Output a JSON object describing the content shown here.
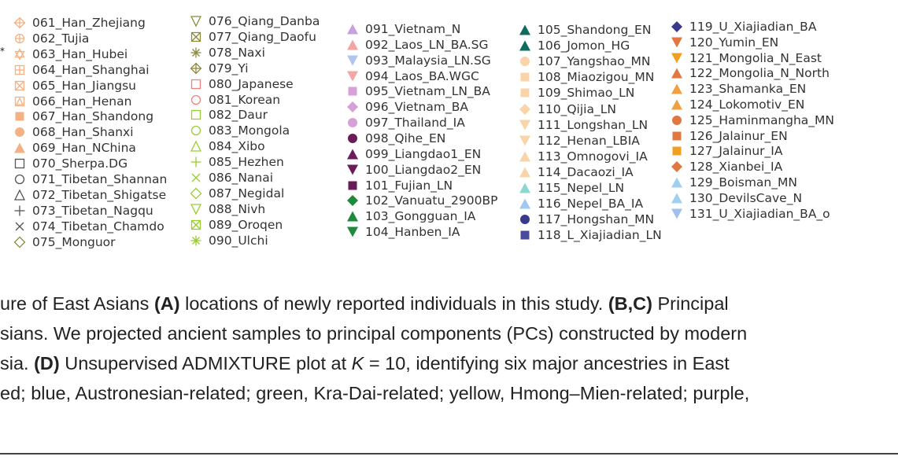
{
  "star_mark": "*",
  "legend_columns": [
    {
      "items": [
        {
          "label": "061_Han_Zhejiang",
          "marker": "diamond-plus-open",
          "color": "#f4b183"
        },
        {
          "label": "062_Tujia",
          "marker": "circle-plus-open",
          "color": "#f4b183"
        },
        {
          "label": "063_Han_Hubei",
          "marker": "star-open",
          "color": "#f4b183"
        },
        {
          "label": "064_Han_Shanghai",
          "marker": "square-plus-open",
          "color": "#f4b183"
        },
        {
          "label": "065_Han_Jiangsu",
          "marker": "square-x-open",
          "color": "#f4b183"
        },
        {
          "label": "066_Han_Henan",
          "marker": "square-triangle-open",
          "color": "#f4b183"
        },
        {
          "label": "067_Han_Shandong",
          "marker": "square-filled",
          "color": "#f4b183"
        },
        {
          "label": "068_Han_Shanxi",
          "marker": "circle-filled",
          "color": "#f4b183"
        },
        {
          "label": "069_Han_NChina",
          "marker": "triangle-up-filled",
          "color": "#f4b183"
        },
        {
          "label": "070_Sherpa.DG",
          "marker": "square-open",
          "color": "#555555"
        },
        {
          "label": "071_Tibetan_Shannan",
          "marker": "circle-open",
          "color": "#555555"
        },
        {
          "label": "072_Tibetan_Shigatse",
          "marker": "triangle-up-open",
          "color": "#555555"
        },
        {
          "label": "073_Tibetan_Nagqu",
          "marker": "plus",
          "color": "#555555"
        },
        {
          "label": "074_Tibetan_Chamdo",
          "marker": "cross",
          "color": "#555555"
        },
        {
          "label": "075_Monguor",
          "marker": "diamond-open",
          "color": "#8c8c3c"
        }
      ]
    },
    {
      "items": [
        {
          "label": "076_Qiang_Danba",
          "marker": "triangle-down-open",
          "color": "#8c8c3c"
        },
        {
          "label": "077_Qiang_Daofu",
          "marker": "square-x-open",
          "color": "#8c8c3c"
        },
        {
          "label": "078_Naxi",
          "marker": "asterisk",
          "color": "#8c8c3c"
        },
        {
          "label": "079_Yi",
          "marker": "diamond-plus-open",
          "color": "#8c8c3c"
        },
        {
          "label": "080_Japanese",
          "marker": "square-open",
          "color": "#f08080"
        },
        {
          "label": "081_Korean",
          "marker": "circle-open",
          "color": "#f08080"
        },
        {
          "label": "082_Daur",
          "marker": "square-open",
          "color": "#9acd32"
        },
        {
          "label": "083_Mongola",
          "marker": "circle-open",
          "color": "#9acd32"
        },
        {
          "label": "084_Xibo",
          "marker": "triangle-up-open",
          "color": "#9acd32"
        },
        {
          "label": "085_Hezhen",
          "marker": "plus",
          "color": "#9acd32"
        },
        {
          "label": "086_Nanai",
          "marker": "cross",
          "color": "#9acd32"
        },
        {
          "label": "087_Negidal",
          "marker": "diamond-open",
          "color": "#9acd32"
        },
        {
          "label": "088_Nivh",
          "marker": "triangle-down-open",
          "color": "#9acd32"
        },
        {
          "label": "089_Oroqen",
          "marker": "square-x-open",
          "color": "#9acd32"
        },
        {
          "label": "090_Ulchi",
          "marker": "asterisk",
          "color": "#9acd32"
        }
      ]
    },
    {
      "items": [
        {
          "label": "091_Vietnam_N",
          "marker": "triangle-up-filled",
          "color": "#c9a0dc"
        },
        {
          "label": "092_Laos_LN_BA.SG",
          "marker": "triangle-up-filled",
          "color": "#f4a6a6"
        },
        {
          "label": "093_Malaysia_LN.SG",
          "marker": "triangle-down-filled",
          "color": "#b0c4f0"
        },
        {
          "label": "094_Laos_BA.WGC",
          "marker": "triangle-down-filled",
          "color": "#f4a6a6"
        },
        {
          "label": "095_Vietnam_LN_BA",
          "marker": "square-filled",
          "color": "#d8a0d8"
        },
        {
          "label": "096_Vietnam_BA",
          "marker": "diamond-filled",
          "color": "#d8a0d8"
        },
        {
          "label": "097_Thailand_IA",
          "marker": "circle-filled",
          "color": "#d8a0d8"
        },
        {
          "label": "098_Qihe_EN",
          "marker": "circle-filled",
          "color": "#6a1b5a"
        },
        {
          "label": "099_Liangdao1_EN",
          "marker": "triangle-up-filled",
          "color": "#6a1b5a"
        },
        {
          "label": "100_Liangdao2_EN",
          "marker": "triangle-down-filled",
          "color": "#6a1b5a"
        },
        {
          "label": "101_Fujian_LN",
          "marker": "square-filled",
          "color": "#6a1b5a"
        },
        {
          "label": "102_Vanuatu_2900BP",
          "marker": "diamond-filled",
          "color": "#1e8a3c"
        },
        {
          "label": "103_Gongguan_IA",
          "marker": "triangle-up-filled",
          "color": "#1e8a3c"
        },
        {
          "label": "104_Hanben_IA",
          "marker": "triangle-down-filled",
          "color": "#1e8a3c"
        }
      ]
    },
    {
      "items": [
        {
          "label": "105_Shandong_EN",
          "marker": "triangle-up-filled",
          "color": "#0f6b5f"
        },
        {
          "label": "106_Jomon_HG",
          "marker": "triangle-up-filled",
          "color": "#0f6b5f"
        },
        {
          "label": "107_Yangshao_MN",
          "marker": "circle-filled",
          "color": "#f8d4a8"
        },
        {
          "label": "108_Miaozigou_MN",
          "marker": "square-filled",
          "color": "#f8d4a8"
        },
        {
          "label": "109_Shimao_LN",
          "marker": "square-filled",
          "color": "#f8d4a8"
        },
        {
          "label": "110_Qijia_LN",
          "marker": "diamond-filled",
          "color": "#f8d4a8"
        },
        {
          "label": "111_Longshan_LN",
          "marker": "triangle-down-filled",
          "color": "#f8d4a8"
        },
        {
          "label": "112_Henan_LBIA",
          "marker": "triangle-down-filled",
          "color": "#f8d4a8"
        },
        {
          "label": "113_Omnogovi_IA",
          "marker": "triangle-up-filled",
          "color": "#f8d4a8"
        },
        {
          "label": "114_Dacaozi_IA",
          "marker": "triangle-up-filled",
          "color": "#f8d4a8"
        },
        {
          "label": "115_Nepel_LN",
          "marker": "triangle-up-filled",
          "color": "#8ad8d0"
        },
        {
          "label": "116_Nepel_BA_IA",
          "marker": "triangle-up-filled",
          "color": "#a0c8f0"
        },
        {
          "label": "117_Hongshan_MN",
          "marker": "circle-filled",
          "color": "#3a3a8c"
        },
        {
          "label": "118_L_Xiajiadian_LN",
          "marker": "square-filled",
          "color": "#4a4a9c"
        }
      ]
    },
    {
      "items": [
        {
          "label": "119_U_Xiajiadian_BA",
          "marker": "diamond-filled",
          "color": "#3a3a8c"
        },
        {
          "label": "120_Yumin_EN",
          "marker": "triangle-down-filled",
          "color": "#e07840"
        },
        {
          "label": "121_Mongolia_N_East",
          "marker": "triangle-down-filled",
          "color": "#f0a020"
        },
        {
          "label": "122_Mongolia_N_North",
          "marker": "triangle-up-filled",
          "color": "#e07840"
        },
        {
          "label": "123_Shamanka_EN",
          "marker": "triangle-up-filled",
          "color": "#f0a040"
        },
        {
          "label": "124_Lokomotiv_EN",
          "marker": "triangle-up-filled",
          "color": "#f0a040"
        },
        {
          "label": "125_Haminmangha_MN",
          "marker": "circle-filled",
          "color": "#e07840"
        },
        {
          "label": "126_Jalainur_EN",
          "marker": "square-filled",
          "color": "#e07840"
        },
        {
          "label": "127_Jalainur_IA",
          "marker": "square-filled",
          "color": "#f0a020"
        },
        {
          "label": "128_Xianbei_IA",
          "marker": "diamond-filled",
          "color": "#e07840"
        },
        {
          "label": "129_Boisman_MN",
          "marker": "triangle-up-filled",
          "color": "#a0d0f0"
        },
        {
          "label": "130_DevilsCave_N",
          "marker": "triangle-up-filled",
          "color": "#a0d0f0"
        },
        {
          "label": "131_U_Xiajiadian_BA_o",
          "marker": "triangle-down-filled",
          "color": "#a0c0f0"
        }
      ]
    }
  ],
  "caption": {
    "lines": [
      [
        {
          "text": "ure of East Asians "
        },
        {
          "text": "(A)",
          "b": true
        },
        {
          "text": " locations of newly reported individuals in this study. "
        },
        {
          "text": "(B,C)",
          "b": true
        },
        {
          "text": " Principal"
        }
      ],
      [
        {
          "text": "sians. We projected ancient samples to principal components (PCs) constructed by modern"
        }
      ],
      [
        {
          "text": "sia. "
        },
        {
          "text": "(D)",
          "b": true
        },
        {
          "text": " Unsupervised ADMIXTURE plot at "
        },
        {
          "text": "K",
          "i": true
        },
        {
          "text": " = 10, identifying six major ancestries in East"
        }
      ],
      [
        {
          "text": "ed; blue, Austronesian-related; green, Kra-Dai-related; yellow, Hmong–Mien-related; purple,"
        }
      ]
    ]
  }
}
